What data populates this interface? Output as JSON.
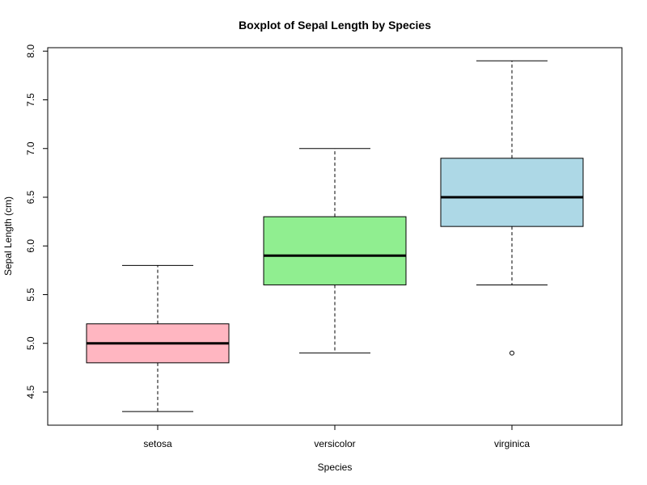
{
  "chart_data": {
    "type": "boxplot",
    "title": "Boxplot of Sepal Length by Species",
    "xlabel": "Species",
    "ylabel": "Sepal Length (cm)",
    "ylim": [
      4.2,
      8.05
    ],
    "y_ticks": [
      4.5,
      5.0,
      5.5,
      6.0,
      6.5,
      7.0,
      7.5,
      8.0
    ],
    "y_tick_labels": [
      "4.5",
      "5.0",
      "5.5",
      "6.0",
      "6.5",
      "7.0",
      "7.5",
      "8.0"
    ],
    "categories": [
      "setosa",
      "versicolor",
      "virginica"
    ],
    "boxes": [
      {
        "category": "setosa",
        "min": 4.3,
        "q1": 4.8,
        "median": 5.0,
        "q3": 5.2,
        "max": 5.8,
        "outliers": [],
        "color": "#FFB6C1"
      },
      {
        "category": "versicolor",
        "min": 4.9,
        "q1": 5.6,
        "median": 5.9,
        "q3": 6.3,
        "max": 7.0,
        "outliers": [],
        "color": "#90EE90"
      },
      {
        "category": "virginica",
        "min": 5.6,
        "q1": 6.2,
        "median": 6.5,
        "q3": 6.9,
        "max": 7.9,
        "outliers": [
          4.9
        ],
        "color": "#ADD8E6"
      }
    ],
    "grid": false,
    "legend": "none"
  }
}
